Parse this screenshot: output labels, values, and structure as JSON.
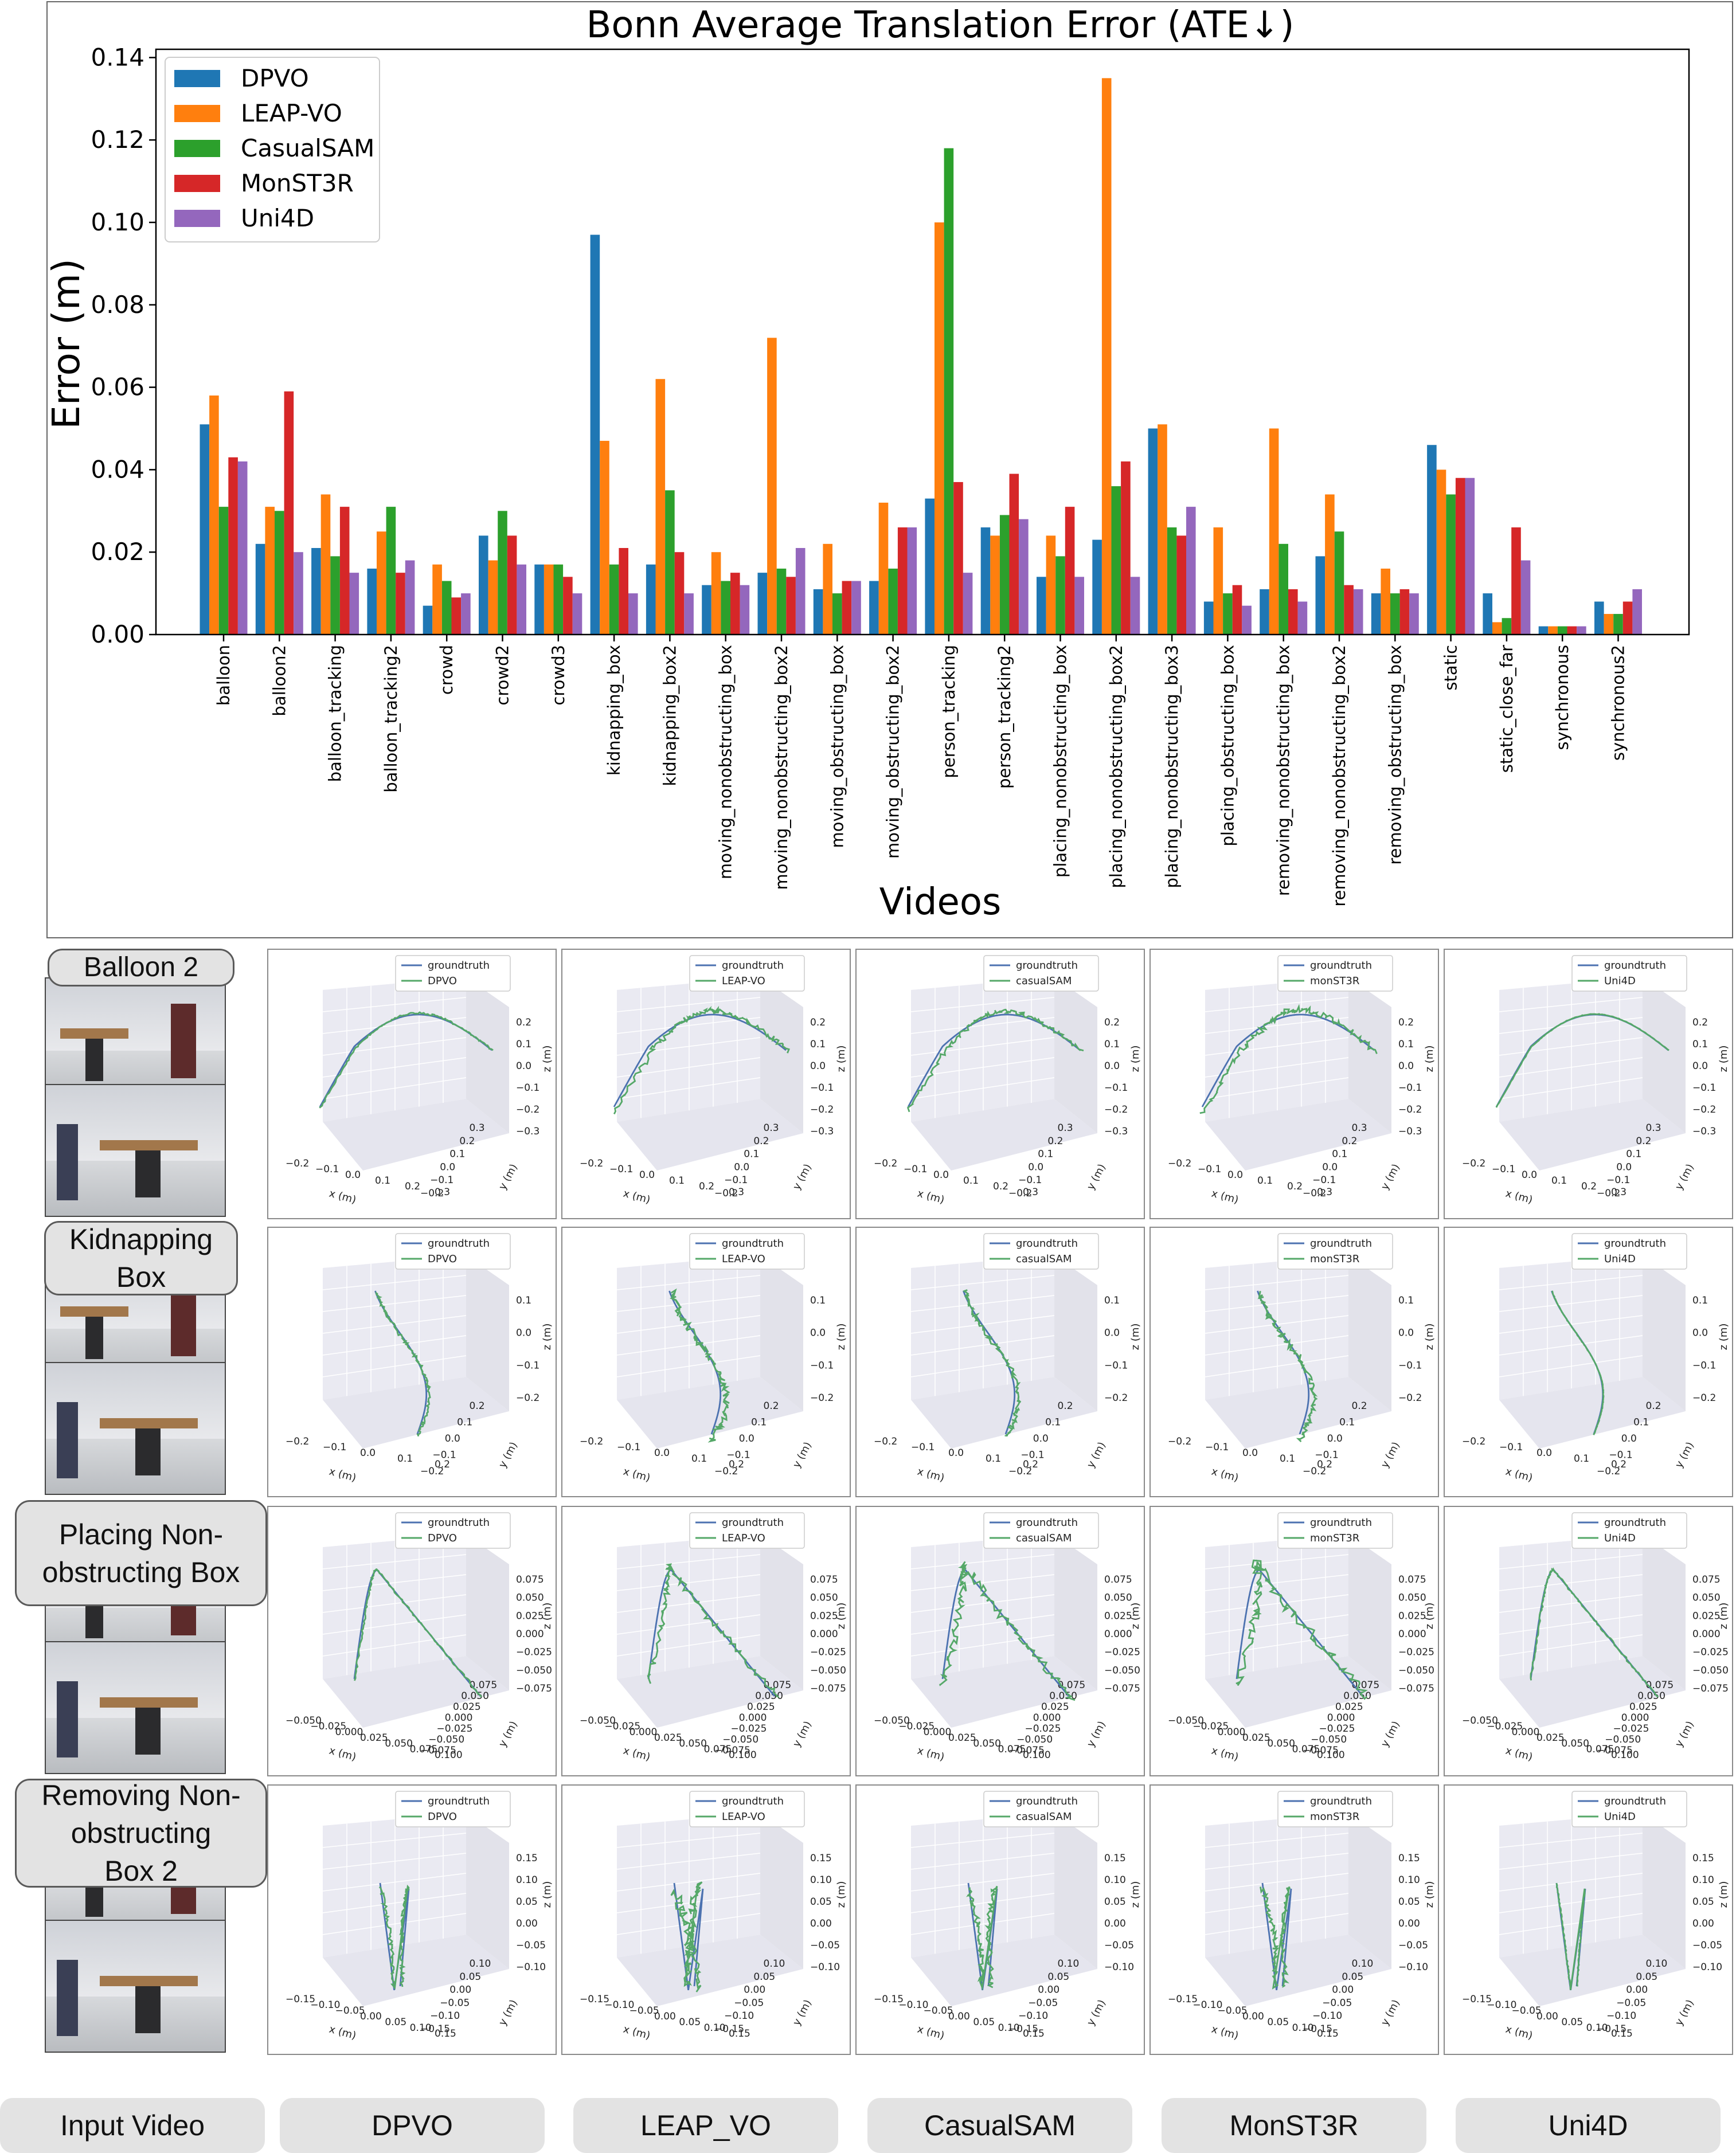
{
  "chart_data": {
    "type": "bar",
    "title": "Bonn Average Translation Error (ATE↓)",
    "xlabel": "Videos",
    "ylabel": "Error (m)",
    "ylim": [
      0,
      0.142
    ],
    "yticks": [
      "0.00",
      "0.02",
      "0.04",
      "0.06",
      "0.08",
      "0.10",
      "0.12",
      "0.14"
    ],
    "legend_position": "top-left",
    "categories": [
      "balloon",
      "balloon2",
      "balloon_tracking",
      "balloon_tracking2",
      "crowd",
      "crowd2",
      "crowd3",
      "kidnapping_box",
      "kidnapping_box2",
      "moving_nonobstructing_box",
      "moving_nonobstructing_box2",
      "moving_obstructing_box",
      "moving_obstructing_box2",
      "person_tracking",
      "person_tracking2",
      "placing_nonobstructing_box",
      "placing_nonobstructing_box2",
      "placing_nonobstructing_box3",
      "placing_obstructing_box",
      "removing_nonobstructing_box",
      "removing_nonobstructing_box2",
      "removing_obstructing_box",
      "static",
      "static_close_far",
      "synchronous",
      "synchronous2"
    ],
    "series": [
      {
        "name": "DPVO",
        "color": "#1f77b4",
        "values": [
          0.051,
          0.022,
          0.021,
          0.016,
          0.007,
          0.024,
          0.017,
          0.097,
          0.017,
          0.012,
          0.015,
          0.011,
          0.013,
          0.033,
          0.026,
          0.014,
          0.023,
          0.05,
          0.008,
          0.011,
          0.019,
          0.01,
          0.046,
          0.01,
          0.002,
          0.008
        ]
      },
      {
        "name": "LEAP-VO",
        "color": "#ff7f0e",
        "values": [
          0.058,
          0.031,
          0.034,
          0.025,
          0.017,
          0.018,
          0.017,
          0.047,
          0.062,
          0.02,
          0.072,
          0.022,
          0.032,
          0.1,
          0.024,
          0.024,
          0.135,
          0.051,
          0.026,
          0.05,
          0.034,
          0.016,
          0.04,
          0.003,
          0.002,
          0.005
        ]
      },
      {
        "name": "CasualSAM",
        "color": "#2ca02c",
        "values": [
          0.031,
          0.03,
          0.019,
          0.031,
          0.013,
          0.03,
          0.017,
          0.017,
          0.035,
          0.013,
          0.016,
          0.01,
          0.016,
          0.118,
          0.029,
          0.019,
          0.036,
          0.026,
          0.01,
          0.022,
          0.025,
          0.01,
          0.034,
          0.004,
          0.002,
          0.005
        ]
      },
      {
        "name": "MonST3R",
        "color": "#d62728",
        "values": [
          0.043,
          0.059,
          0.031,
          0.015,
          0.009,
          0.024,
          0.014,
          0.021,
          0.02,
          0.015,
          0.014,
          0.013,
          0.026,
          0.037,
          0.039,
          0.031,
          0.042,
          0.024,
          0.012,
          0.011,
          0.012,
          0.011,
          0.038,
          0.026,
          0.002,
          0.008
        ]
      },
      {
        "name": "Uni4D",
        "color": "#9467bd",
        "values": [
          0.042,
          0.02,
          0.015,
          0.018,
          0.01,
          0.017,
          0.01,
          0.01,
          0.01,
          0.012,
          0.021,
          0.013,
          0.026,
          0.015,
          0.028,
          0.014,
          0.014,
          0.031,
          0.007,
          0.008,
          0.011,
          0.01,
          0.038,
          0.018,
          0.002,
          0.011
        ]
      }
    ]
  },
  "trajectory_grid": {
    "gt_legend": "groundtruth",
    "gt_color": "#4c72b0",
    "est_color": "#55a868",
    "panel_bg": "#eaeaf2",
    "method_legends": [
      "DPVO",
      "LEAP-VO",
      "casualSAM",
      "monST3R",
      "Uni4D"
    ],
    "column_labels": [
      "Input Video",
      "DPVO",
      "LEAP_VO",
      "CasualSAM",
      "MonST3R",
      "Uni4D"
    ],
    "axis_names": {
      "x": "x (m)",
      "y": "y (m)",
      "z": "z (m)"
    },
    "rows": [
      {
        "label": "Balloon 2",
        "x_ticks": [
          "−0.2",
          "−0.1",
          "0.0",
          "0.1",
          "0.2",
          "0.3"
        ],
        "y_ticks": [
          "−0.2",
          "−0.1",
          "0.0",
          "0.1",
          "0.2",
          "0.3"
        ],
        "z_ticks": [
          "0.2",
          "0.1",
          "0.0",
          "−0.1",
          "−0.2",
          "−0.3"
        ]
      },
      {
        "label": "Kidnapping\nBox",
        "x_ticks": [
          "−0.2",
          "−0.1",
          "0.0",
          "0.1",
          "0.2"
        ],
        "y_ticks": [
          "−0.2",
          "−0.1",
          "0.0",
          "0.1",
          "0.2"
        ],
        "z_ticks": [
          "0.1",
          "0.0",
          "−0.1",
          "−0.2"
        ]
      },
      {
        "label": "Placing Non-\nobstructing Box",
        "x_ticks": [
          "−0.050",
          "−0.025",
          "0.000",
          "0.025",
          "0.050",
          "0.075",
          "0.100"
        ],
        "y_ticks": [
          "−0.075",
          "−0.050",
          "−0.025",
          "0.000",
          "0.025",
          "0.050",
          "0.075"
        ],
        "z_ticks": [
          "0.075",
          "0.050",
          "0.025",
          "0.000",
          "−0.025",
          "−0.050",
          "−0.075"
        ]
      },
      {
        "label": "Removing Non-\nobstructing\nBox 2",
        "x_ticks": [
          "−0.15",
          "−0.10",
          "−0.05",
          "0.00",
          "0.05",
          "0.10",
          "0.15"
        ],
        "y_ticks": [
          "−0.15",
          "−0.10",
          "−0.05",
          "0.00",
          "0.05",
          "0.10"
        ],
        "z_ticks": [
          "0.15",
          "0.10",
          "0.05",
          "0.00",
          "−0.05",
          "−0.10"
        ]
      }
    ]
  }
}
